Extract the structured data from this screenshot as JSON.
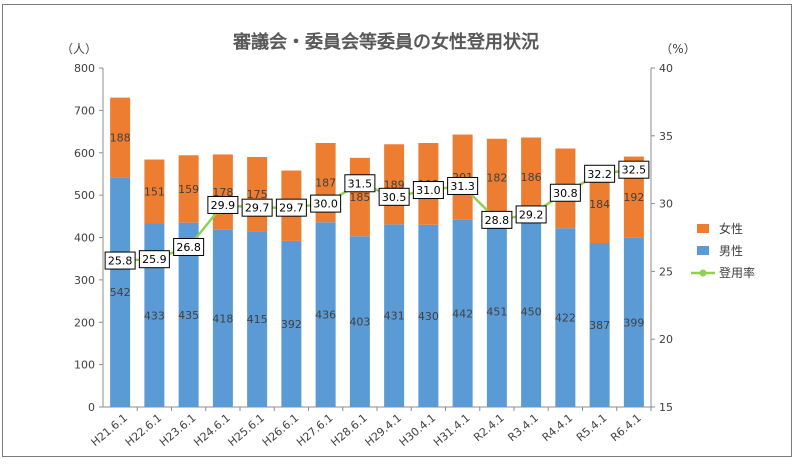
{
  "chart_data": {
    "type": "bar",
    "title": "審議会・委員会等委員の女性登用状況",
    "y_left_unit": "（人）",
    "y_right_unit": "（%）",
    "categories": [
      "H21.6.1",
      "H22.6.1",
      "H23.6.1",
      "H24.6.1",
      "H25.6.1",
      "H26.6.1",
      "H27.6.1",
      "H28.6.1",
      "H29.4.1",
      "H30.4.1",
      "H31.4.1",
      "R2.4.1",
      "R3.4.1",
      "R4.4.1",
      "R5.4.1",
      "R6.4.1"
    ],
    "series": [
      {
        "name": "男性",
        "kind": "stacked-bar",
        "axis": "left",
        "color": "#5b9bd5",
        "values": [
          542,
          433,
          435,
          418,
          415,
          392,
          436,
          403,
          431,
          430,
          442,
          451,
          450,
          422,
          387,
          399
        ]
      },
      {
        "name": "女性",
        "kind": "stacked-bar",
        "axis": "left",
        "color": "#ed7d31",
        "values": [
          188,
          151,
          159,
          178,
          175,
          166,
          187,
          185,
          189,
          193,
          201,
          182,
          186,
          188,
          184,
          192
        ]
      },
      {
        "name": "登用率",
        "kind": "line",
        "axis": "right",
        "color": "#92d050",
        "values": [
          25.8,
          25.9,
          26.8,
          29.9,
          29.7,
          29.7,
          30.0,
          31.5,
          30.5,
          31.0,
          31.3,
          28.8,
          29.2,
          30.8,
          32.2,
          32.5
        ]
      }
    ],
    "ylim_left": [
      0,
      800
    ],
    "yticks_left": [
      0,
      100,
      200,
      300,
      400,
      500,
      600,
      700,
      800
    ],
    "ylim_right": [
      15,
      40
    ],
    "yticks_right": [
      15,
      20,
      25,
      30,
      35,
      40
    ],
    "rate_labels": [
      "25.8",
      "25.9",
      "26.8",
      "29.9",
      "29.7",
      "29.7",
      "30.0",
      "31.5",
      "30.5",
      "31.0",
      "31.3",
      "28.8",
      "29.2",
      "30.8",
      "32.2",
      "32.5"
    ],
    "grid": false,
    "legend": {
      "placement": "right",
      "items": [
        {
          "label": "女性",
          "color": "#ed7d31"
        },
        {
          "label": "男性",
          "color": "#5b9bd5"
        },
        {
          "label": "登用率",
          "color": "#92d050"
        }
      ]
    }
  }
}
